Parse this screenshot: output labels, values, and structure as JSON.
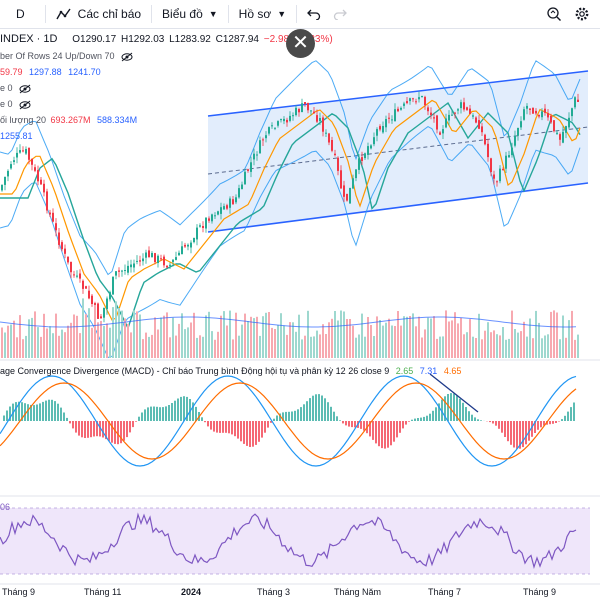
{
  "toolbar": {
    "interval": "D",
    "indicators_label": "Các chỉ báo",
    "chart_type_label": "Biểu đồ",
    "profile_label": "Hồ sơ"
  },
  "legend": {
    "symbol": "INDEX · 1D",
    "open": "O1290.17",
    "high": "H1292.03",
    "low": "L1283.92",
    "close": "C1287.94",
    "change": "−2.98 (−0.23%)",
    "vp_label": "ber Of Rows 24 Up/Down 70",
    "bb_v1": "59.79",
    "bb_v2": "1297.88",
    "bb_v3": "1241.70",
    "row3": "e 0",
    "row4": "e 0",
    "vol_label": "ối lượng 20",
    "vol_v1": "693.267M",
    "vol_v2": "588.334M",
    "price_tag": "1255.81",
    "macd_title": "age Convergence Divergence (MACD) - Chỉ báo Trung bình Động hội tụ và phân kỳ 12 26 close 9",
    "macd_v1": "2.65",
    "macd_v2": "7.31",
    "macd_v3": "4.65",
    "rsi_tag": "06"
  },
  "xaxis": [
    "Tháng 9",
    "Tháng 11",
    "2024",
    "Tháng 3",
    "Tháng Năm",
    "Tháng 7",
    "Tháng 9"
  ],
  "colors": {
    "up": "#22ab94",
    "down": "#f23645",
    "band_fill": "#dbe9fb",
    "channel": "#2962ff",
    "bb": "#2196f3",
    "ema_orange": "#ff9800",
    "ema_teal": "#26a69a",
    "rsi": "#7e57c2",
    "rsi_bg": "#efe6fa"
  },
  "icons": [
    "eye-off-icon",
    "undo-icon",
    "redo-icon",
    "quick-search-icon",
    "settings-icon",
    "close-icon"
  ]
}
